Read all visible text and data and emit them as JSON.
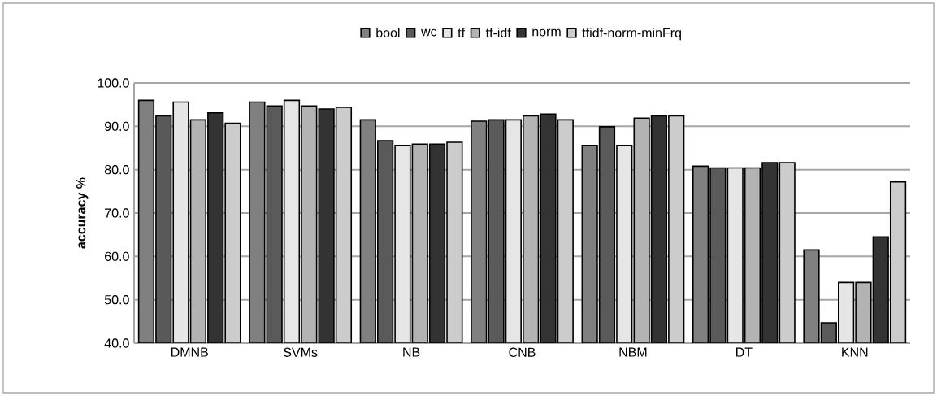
{
  "chart_data": {
    "type": "bar",
    "ylabel": "accuracy %",
    "categories": [
      "DMNB",
      "SVMs",
      "NB",
      "CNB",
      "NBM",
      "DT",
      "KNN"
    ],
    "series": [
      {
        "name": "bool",
        "color": "#808080",
        "values": [
          96.0,
          95.6,
          91.5,
          91.2,
          85.6,
          80.8,
          61.5
        ]
      },
      {
        "name": "wc",
        "color": "#5a5a5a",
        "values": [
          92.4,
          94.7,
          86.7,
          91.5,
          89.9,
          80.4,
          44.7
        ]
      },
      {
        "name": "tf",
        "color": "#e6e6e6",
        "values": [
          95.6,
          96.0,
          85.6,
          91.5,
          85.6,
          80.4,
          54.0
        ]
      },
      {
        "name": "tf-idf",
        "color": "#b3b3b3",
        "values": [
          91.5,
          94.7,
          85.9,
          92.4,
          91.9,
          80.4,
          54.0
        ]
      },
      {
        "name": "norm",
        "color": "#333333",
        "values": [
          93.1,
          94.0,
          85.9,
          92.8,
          92.4,
          81.6,
          64.5
        ]
      },
      {
        "name": "tfidf-norm-minFrq",
        "color": "#cccccc",
        "values": [
          90.7,
          94.4,
          86.3,
          91.5,
          92.4,
          81.6,
          77.2
        ]
      }
    ],
    "ylim": [
      40,
      100
    ],
    "yticks": [
      {
        "value": 40,
        "label": "40.0"
      },
      {
        "value": 50,
        "label": "50.0"
      },
      {
        "value": 60,
        "label": "60.0"
      },
      {
        "value": 70,
        "label": "70.0"
      },
      {
        "value": 80,
        "label": "80.0"
      },
      {
        "value": 90,
        "label": "90.0"
      },
      {
        "value": 100,
        "label": "100.0"
      }
    ],
    "grid": "y",
    "legend": "top"
  }
}
